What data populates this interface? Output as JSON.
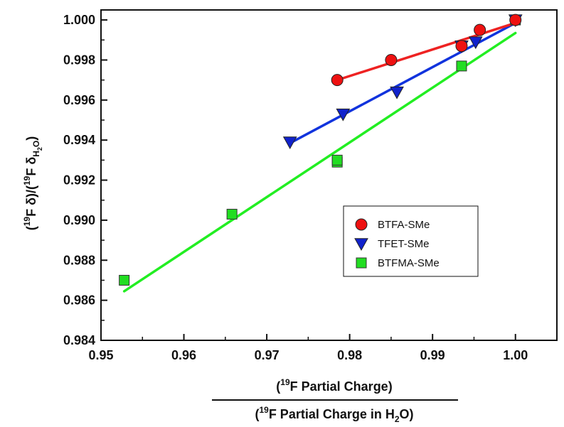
{
  "chart_data": {
    "type": "scatter",
    "title": "",
    "xlabel": {
      "numerator_sup": "19",
      "numerator_text": "F Partial Charge)",
      "denominator_sup": "19",
      "denominator_text": "F Partial Charge in H",
      "denominator_sub": "2",
      "denominator_end": "O)"
    },
    "ylabel": {
      "p1": "(",
      "sup1": "19",
      "p2": "F δ)/(",
      "sup2": "19",
      "p3": "F δ",
      "sub1": "H",
      "subsub": "2",
      "sub2": "O",
      "p4": ")"
    },
    "xlim": [
      0.95,
      1.005
    ],
    "ylim": [
      0.984,
      1.0005
    ],
    "xticks": [
      "0.95",
      "0.96",
      "0.97",
      "0.98",
      "0.99",
      "1.00"
    ],
    "yticks": [
      "0.984",
      "0.986",
      "0.988",
      "0.990",
      "0.992",
      "0.994",
      "0.996",
      "0.998",
      "1.000"
    ],
    "legend_position": "center-right",
    "series": [
      {
        "name": "BTFA-SMe",
        "marker": "circle",
        "color": "#ee1111",
        "line_color": "#ee2222",
        "points": [
          [
            0.9785,
            0.997
          ],
          [
            0.985,
            0.998
          ],
          [
            0.9935,
            0.9987
          ],
          [
            0.9957,
            0.9995
          ],
          [
            1.0,
            1.0
          ]
        ],
        "fit": [
          [
            0.9785,
            0.997
          ],
          [
            1.0,
            0.99985
          ]
        ]
      },
      {
        "name": "TFET-SMe",
        "marker": "triangle-down",
        "color": "#1122cc",
        "line_color": "#1133dd",
        "points": [
          [
            0.9728,
            0.9939
          ],
          [
            0.9792,
            0.9953
          ],
          [
            0.9857,
            0.9964
          ],
          [
            0.9935,
            0.9987
          ],
          [
            0.9952,
            0.9989
          ],
          [
            1.0,
            1.0
          ]
        ],
        "fit": [
          [
            0.9728,
            0.99385
          ],
          [
            1.0,
            0.99985
          ]
        ]
      },
      {
        "name": "BTFMA-SMe",
        "marker": "square",
        "color": "#22dd22",
        "line_color": "#22ee22",
        "points": [
          [
            0.9528,
            0.987
          ],
          [
            0.9658,
            0.9903
          ],
          [
            0.9785,
            0.9929
          ],
          [
            0.9785,
            0.993
          ],
          [
            0.9935,
            0.9977
          ],
          [
            1.0,
            1.0
          ]
        ],
        "fit": [
          [
            0.9528,
            0.98645
          ],
          [
            1.0,
            0.99935
          ]
        ]
      }
    ]
  }
}
